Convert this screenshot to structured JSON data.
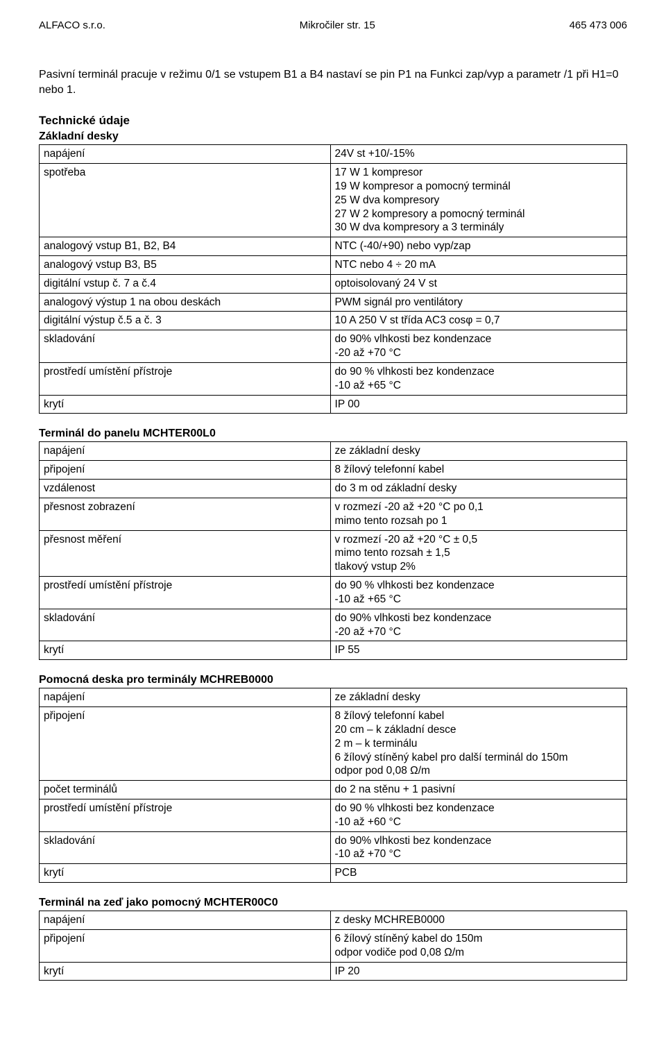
{
  "header": {
    "left": "ALFACO s.r.o.",
    "center": "Mikročiler  str. 15",
    "right": "465 473 006"
  },
  "intro": "Pasivní terminál pracuje v režimu 0/1 se vstupem B1 a B4 nastaví se pin P1 na Funkci zap/vyp a parametr /1 při H1=0 nebo 1.",
  "sect_tech": "Technické údaje",
  "t1": {
    "title": "Základní desky",
    "r": [
      {
        "k": "napájení",
        "v": "24V st +10/-15%"
      },
      {
        "k": "spotřeba",
        "v": "17 W 1 kompresor\n19 W kompresor a pomocný terminál\n25 W dva kompresory\n27 W 2 kompresory a pomocný terminál\n30 W dva kompresory a 3 terminály"
      },
      {
        "k": "analogový vstup B1, B2, B4",
        "v": "NTC (-40/+90) nebo vyp/zap"
      },
      {
        "k": "analogový vstup B3, B5",
        "v": "NTC nebo 4 ÷ 20 mA"
      },
      {
        "k": "digitální vstup č. 7 a č.4",
        "v": "optoisolovaný 24 V st"
      },
      {
        "k": "analogový výstup 1 na obou deskách",
        "v": "PWM signál pro ventilátory"
      },
      {
        "k": "digitální výstup č.5 a č. 3",
        "v": "10 A 250 V st třída AC3  cosφ = 0,7"
      },
      {
        "k": "skladování",
        "v": "do 90% vlhkosti bez kondenzace\n-20 až +70 °C"
      },
      {
        "k": "prostředí umístění přístroje",
        "v": "do 90 % vlhkosti bez kondenzace\n-10 až +65 °C"
      },
      {
        "k": "krytí",
        "v": "IP 00"
      }
    ]
  },
  "t2": {
    "title": "Terminál do panelu MCHTER00L0",
    "r": [
      {
        "k": "napájení",
        "v": "ze základní desky"
      },
      {
        "k": "připojení",
        "v": "8 žílový telefonní kabel"
      },
      {
        "k": "vzdálenost",
        "v": "do 3 m od základní desky"
      },
      {
        "k": "přesnost zobrazení",
        "v": "v rozmezí -20 až +20 °C po 0,1\nmimo tento rozsah            po 1"
      },
      {
        "k": "přesnost měření",
        "v": "v rozmezí -20 až +20 °C  ± 0,5\nmimo tento rozsah          ± 1,5\ntlakový vstup                    2%"
      },
      {
        "k": "prostředí umístění přístroje",
        "v": "do 90 % vlhkosti bez kondenzace\n-10 až +65 °C"
      },
      {
        "k": "skladování",
        "v": "do 90% vlhkosti bez kondenzace\n-20 až +70 °C"
      },
      {
        "k": "krytí",
        "v": "IP 55"
      }
    ]
  },
  "t3": {
    "title": "Pomocná deska pro terminály MCHREB0000",
    "r": [
      {
        "k": "napájení",
        "v": "ze základní desky"
      },
      {
        "k": "připojení",
        "v": "8 žílový telefonní kabel\n20 cm – k základní desce\n2 m – k terminálu\n6 žílový stíněný kabel pro další terminál do 150m\nodpor pod 0,08 Ω/m"
      },
      {
        "k": "počet terminálů",
        "v": "do 2 na stěnu + 1 pasivní"
      },
      {
        "k": "prostředí umístění přístroje",
        "v": "do 90 % vlhkosti bez kondenzace\n-10 až +60 °C"
      },
      {
        "k": "skladování",
        "v": "do 90% vlhkosti bez kondenzace\n-10 až +70 °C"
      },
      {
        "k": "krytí",
        "v": "PCB"
      }
    ]
  },
  "t4": {
    "title": "Terminál na zeď jako pomocný MCHTER00C0",
    "r": [
      {
        "k": "napájení",
        "v": "z desky MCHREB0000"
      },
      {
        "k": "připojení",
        "v": "6 žílový stíněný kabel do 150m\nodpor vodiče pod 0,08 Ω/m"
      },
      {
        "k": "krytí",
        "v": "IP 20"
      }
    ]
  }
}
